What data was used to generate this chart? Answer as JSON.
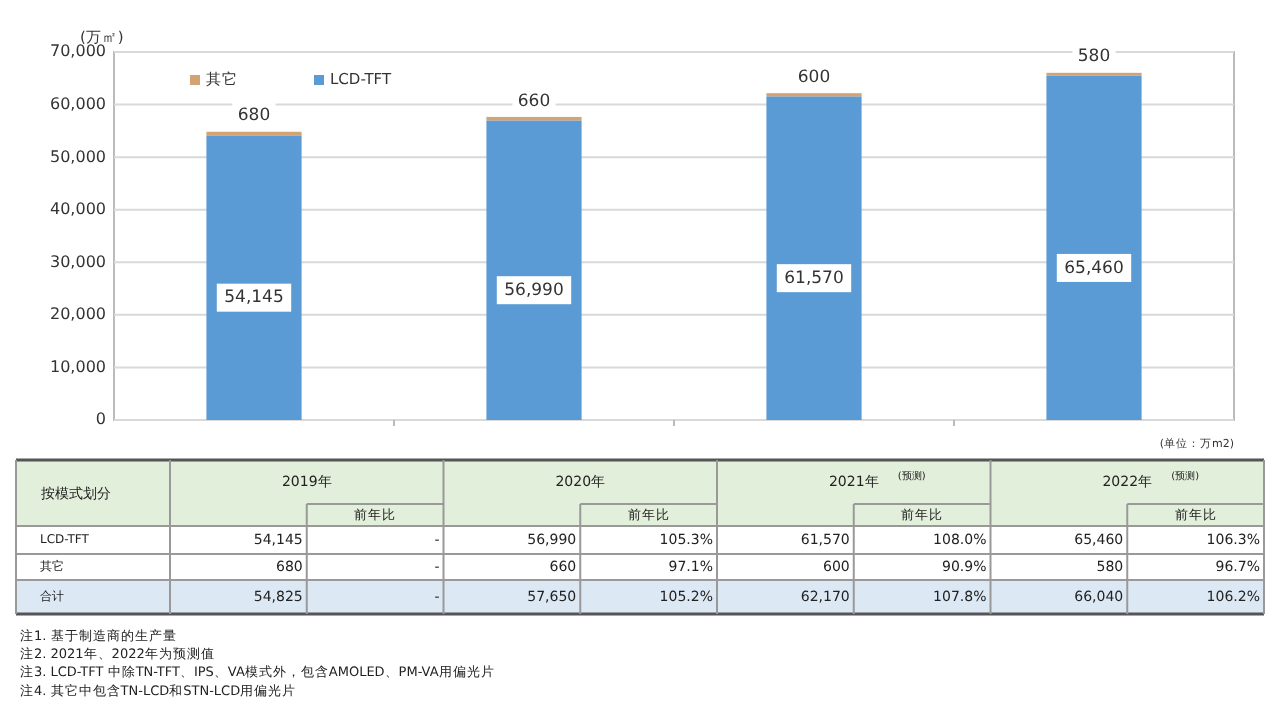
{
  "chart_data": {
    "type": "bar",
    "stacked": true,
    "ylabel": "(万㎡)",
    "categories": [
      "2019年",
      "2020年",
      "2021年",
      "2022年"
    ],
    "series": [
      {
        "name": "LCD-TFT",
        "color": "#5b9bd5",
        "values": [
          54145,
          56990,
          61570,
          65460
        ],
        "value_labels": [
          "54,145",
          "56,990",
          "61,570",
          "65,460"
        ]
      },
      {
        "name": "其它",
        "color": "#d4a373",
        "values": [
          680,
          660,
          600,
          580
        ],
        "value_labels": [
          "680",
          "660",
          "600",
          "580"
        ]
      }
    ],
    "ylim": [
      0,
      70000
    ],
    "yticks": [
      {
        "value": 0,
        "label": "0"
      },
      {
        "value": 10000,
        "label": "10,000"
      },
      {
        "value": 20000,
        "label": "20,000"
      },
      {
        "value": 30000,
        "label": "30,000"
      },
      {
        "value": 40000,
        "label": "40,000"
      },
      {
        "value": 50000,
        "label": "50,000"
      },
      {
        "value": 60000,
        "label": "60,000"
      },
      {
        "value": 70000,
        "label": "70,000"
      }
    ],
    "grid": "y",
    "legend": "top left",
    "tick_labels": "y",
    "annotations": [
      "(单位：万m2)",
      "按模式划分",
      "(预测)",
      "(预测)",
      "前年比",
      "前年比",
      "前年比",
      "前年比",
      "合计",
      "-",
      "105.3%",
      "108.0%",
      "106.3%",
      "-",
      "97.1%",
      "90.9%",
      "96.7%",
      "-",
      "105.2%",
      "107.8%",
      "106.2%",
      "54,825",
      "57,650",
      "62,170",
      "66,040",
      "注1. 基于制造商的生产量",
      "注2. 2021年、2022年为预测值",
      "注3. LCD-TFT 中除TN-TFT、IPS、VA模式外，包含AMOLED、PM-VA用偏光片",
      "注4. 其它中包含TN-LCD和STN-LCD用偏光片"
    ]
  }
}
